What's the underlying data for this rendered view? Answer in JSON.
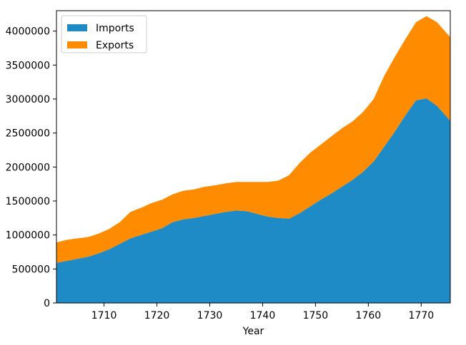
{
  "chart_data": {
    "type": "area",
    "stacked": true,
    "title": "",
    "xlabel": "Year",
    "ylabel": "",
    "xlim": [
      1701,
      1775.5
    ],
    "ylim": [
      0,
      4300000
    ],
    "x_ticks": [
      1710,
      1720,
      1730,
      1740,
      1750,
      1760,
      1770
    ],
    "y_ticks": [
      0,
      500000,
      1000000,
      1500000,
      2000000,
      2500000,
      3000000,
      3500000,
      4000000
    ],
    "x_tick_labels": [
      "1710",
      "1720",
      "1730",
      "1740",
      "1750",
      "1760",
      "1770"
    ],
    "y_tick_labels": [
      "0",
      "500000",
      "1000000",
      "1500000",
      "2000000",
      "2500000",
      "3000000",
      "3500000",
      "4000000"
    ],
    "grid": false,
    "legend_position": "top-left",
    "x": [
      1701,
      1703,
      1705,
      1707,
      1709,
      1711,
      1713,
      1715,
      1717,
      1719,
      1721,
      1723,
      1725,
      1727,
      1729,
      1731,
      1733,
      1735,
      1737,
      1739,
      1741,
      1743,
      1745,
      1747,
      1749,
      1751,
      1753,
      1755,
      1757,
      1759,
      1761,
      1763,
      1765,
      1767,
      1769,
      1771,
      1773,
      1775.5
    ],
    "series": [
      {
        "name": "Imports",
        "color": "#1f8bc6",
        "values": [
          590000,
          620000,
          650000,
          680000,
          730000,
          790000,
          870000,
          950000,
          1000000,
          1050000,
          1100000,
          1190000,
          1230000,
          1250000,
          1280000,
          1310000,
          1340000,
          1360000,
          1350000,
          1310000,
          1270000,
          1250000,
          1240000,
          1320000,
          1420000,
          1520000,
          1610000,
          1710000,
          1810000,
          1930000,
          2080000,
          2300000,
          2520000,
          2760000,
          2980000,
          3010000,
          2900000,
          2680000
        ]
      },
      {
        "name": "Exports",
        "color": "#ff8c00",
        "values": [
          300000,
          310000,
          300000,
          290000,
          290000,
          300000,
          320000,
          390000,
          400000,
          420000,
          420000,
          410000,
          420000,
          420000,
          430000,
          420000,
          420000,
          420000,
          430000,
          470000,
          510000,
          550000,
          640000,
          740000,
          790000,
          810000,
          840000,
          860000,
          860000,
          880000,
          920000,
          1040000,
          1100000,
          1120000,
          1150000,
          1210000,
          1230000,
          1230000
        ]
      }
    ]
  }
}
